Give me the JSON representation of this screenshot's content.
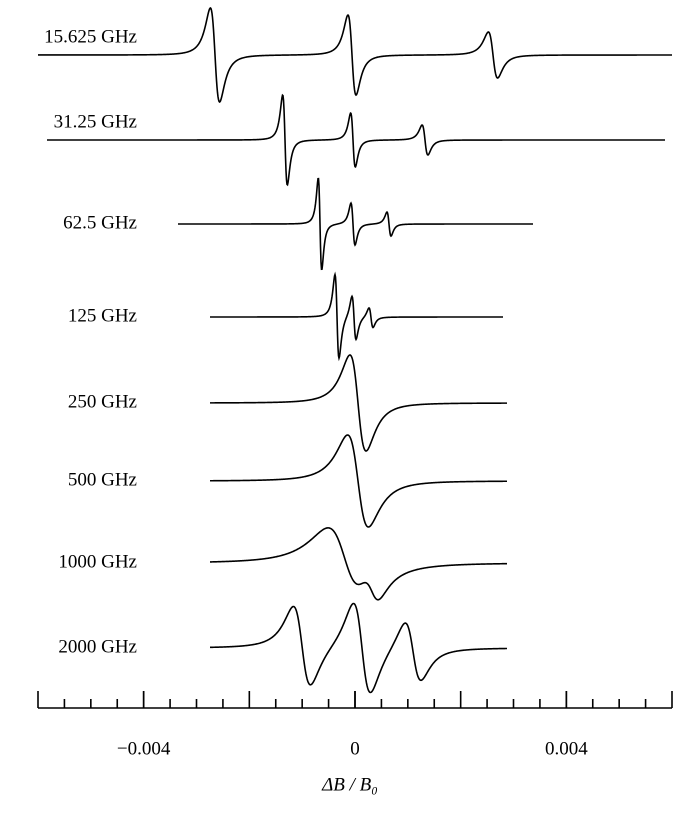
{
  "chart_data": {
    "type": "spectra",
    "traces": [
      "15.625 GHz",
      "31.25 GHz",
      "62.5 GHz",
      "125 GHz",
      "250 GHz",
      "500 GHz",
      "1000 GHz",
      "2000 GHz"
    ],
    "xlabel": "ΔB / B₀",
    "xlim": [
      -0.006,
      0.006
    ],
    "xticks": [
      {
        "value": -0.004,
        "label": "−0.004"
      },
      0,
      0.004
    ],
    "xminorticks": [
      -0.006,
      -0.0055,
      -0.005,
      -0.0045,
      -0.004,
      -0.0035,
      -0.003,
      -0.0025,
      -0.002,
      -0.0015,
      -0.001,
      -0.0005,
      0,
      0.0005,
      0.001,
      0.0015,
      0.002,
      0.0025,
      0.003,
      0.0035,
      0.004,
      0.0045,
      0.005,
      0.0055,
      0.006
    ]
  }
}
